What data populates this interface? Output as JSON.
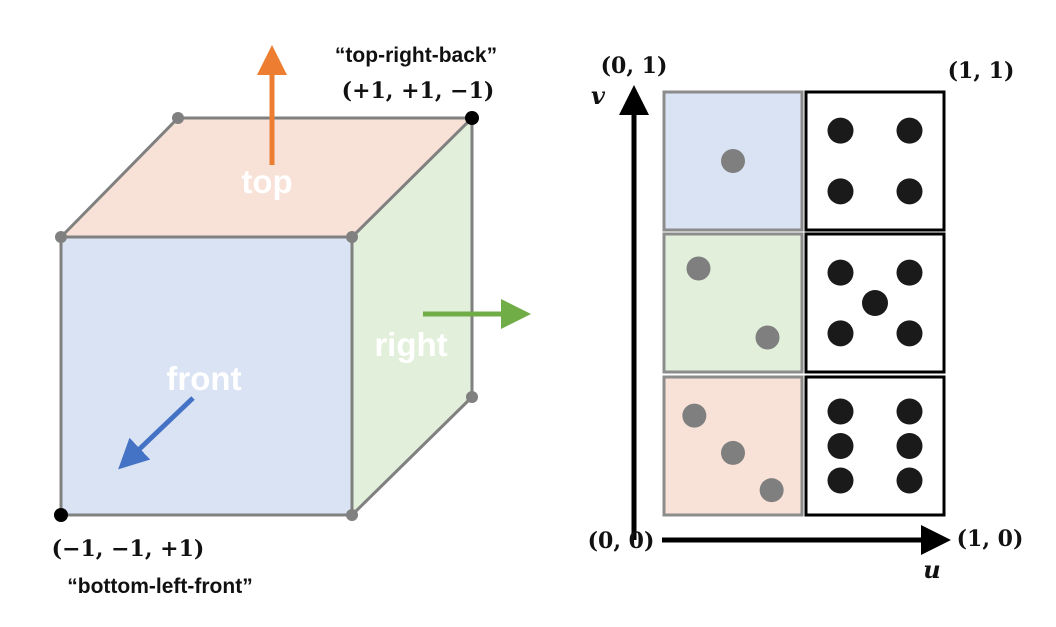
{
  "cube": {
    "faces": {
      "top": "top",
      "front": "front",
      "right": "right"
    },
    "corners": {
      "top_right_back": {
        "name": "“top-right-back”",
        "coords": "(+𝟏, +𝟏, −𝟏)"
      },
      "bottom_left_front": {
        "name": "“bottom-left-front”",
        "coords": "(−𝟏, −𝟏, +𝟏)"
      }
    },
    "colors": {
      "top_face": "#f8e1d6",
      "front_face": "#dae3f3",
      "right_face": "#e2efda",
      "edge": "#808080",
      "top_arrow": "#ed7d31",
      "front_arrow": "#4472c4",
      "right_arrow": "#70ad47"
    }
  },
  "uv_map": {
    "axes": {
      "u": "u",
      "v": "v",
      "origin": "(0, 0)",
      "u_end": "(1, 0)",
      "v_end": "(0, 1)",
      "corner": "(1, 1)"
    },
    "tiles": [
      {
        "face": "blue",
        "pips": 1,
        "color": "#dae3f3"
      },
      {
        "face": "plain",
        "pips": 4,
        "color": "#ffffff"
      },
      {
        "face": "green",
        "pips": 2,
        "color": "#e2efda"
      },
      {
        "face": "plain",
        "pips": 5,
        "color": "#ffffff"
      },
      {
        "face": "orange",
        "pips": 3,
        "color": "#f8e1d6"
      },
      {
        "face": "plain",
        "pips": 6,
        "color": "#ffffff"
      }
    ]
  }
}
